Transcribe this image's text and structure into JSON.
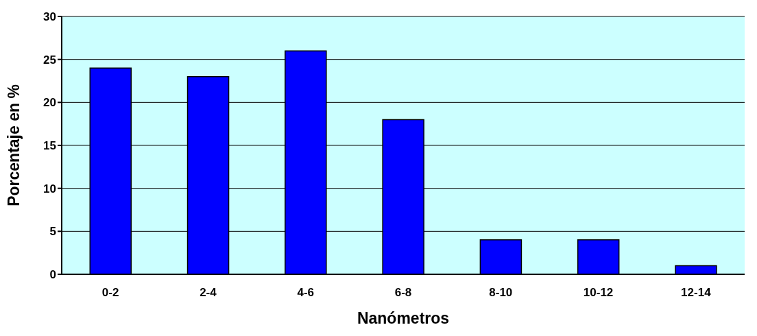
{
  "chart_data": {
    "type": "bar",
    "xlabel": "Nanómetros",
    "ylabel": "Porcentaje en %",
    "categories": [
      "0-2",
      "2-4",
      "4-6",
      "6-8",
      "8-10",
      "10-12",
      "12-14"
    ],
    "values": [
      24,
      23,
      26,
      18,
      4,
      4,
      1
    ],
    "color": "#0000ff",
    "ylim": [
      0,
      30
    ],
    "yticks": [
      0,
      5,
      10,
      15,
      20,
      25,
      30
    ],
    "grid": "y"
  }
}
